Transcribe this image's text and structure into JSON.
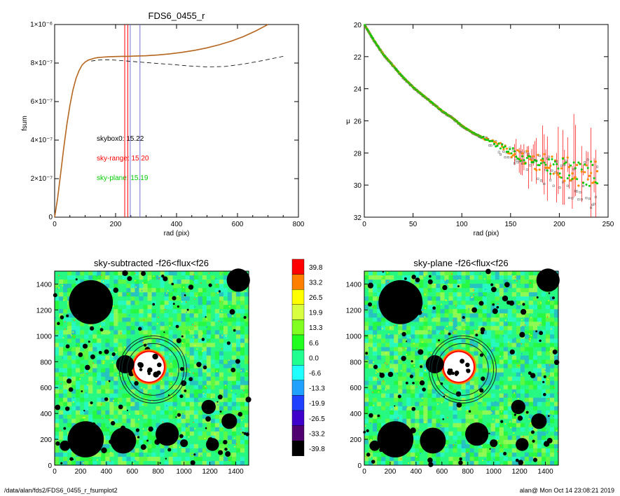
{
  "colors": {
    "sum_line": "#b5651d",
    "dashed": "#000000",
    "red": "#ff0000",
    "green": "#00cc00",
    "orange": "#ff8c00",
    "grey": "#6e6e6e",
    "blue_line": "#6f6fd8"
  },
  "footer": {
    "left": "/data/alan/fds2/FDS6_0455_r_fsumplot2",
    "right": "alan@  Mon Oct 14 23:08:21 2019"
  },
  "annotations": {
    "skybox": "skybox0: 15.22",
    "sky_range": "sky-range: 15.20",
    "sky_plane": "sky-plane: 15.19"
  },
  "chart_data": [
    {
      "type": "line",
      "title": "FDS6_0455_r",
      "xlabel": "rad (pix)",
      "ylabel": "fsum",
      "xlim": [
        0,
        800
      ],
      "ylim": [
        0,
        1e-06
      ],
      "xticks": [
        "0",
        "200",
        "400",
        "600",
        "800"
      ],
      "yticks": [
        "0",
        "2×10⁻⁷",
        "4×10⁻⁷",
        "6×10⁻⁷",
        "8×10⁻⁷",
        "1×10⁻⁶"
      ],
      "yticks_values": [
        0,
        2e-07,
        4e-07,
        6e-07,
        8e-07,
        1e-06
      ],
      "xticks_values": [
        0,
        200,
        400,
        600,
        800
      ],
      "series": [
        {
          "style": "solid",
          "x": [
            0,
            10,
            20,
            30,
            40,
            50,
            60,
            70,
            80,
            90,
            100,
            110,
            120,
            130,
            140,
            160,
            180,
            200,
            220,
            240,
            260,
            280,
            300,
            340,
            380,
            420,
            460,
            500,
            540,
            580,
            620,
            660,
            700
          ],
          "y": [
            0,
            1e-07,
            2.3e-07,
            3.6e-07,
            4.8e-07,
            5.8e-07,
            6.6e-07,
            7.2e-07,
            7.6e-07,
            7.9e-07,
            8.05e-07,
            8.15e-07,
            8.2e-07,
            8.25e-07,
            8.28e-07,
            8.31e-07,
            8.33e-07,
            8.34e-07,
            8.35e-07,
            8.35e-07,
            8.36e-07,
            8.37e-07,
            8.38e-07,
            8.42e-07,
            8.48e-07,
            8.56e-07,
            8.66e-07,
            8.79e-07,
            8.95e-07,
            9.14e-07,
            9.38e-07,
            9.67e-07,
            1e-06
          ]
        },
        {
          "style": "dashed",
          "x": [
            120,
            140,
            160,
            180,
            200,
            240,
            280,
            320,
            380,
            440,
            500,
            560,
            620,
            680,
            750
          ],
          "y": [
            8.1e-07,
            8.15e-07,
            8.17e-07,
            8.17e-07,
            8.15e-07,
            8.1e-07,
            8.05e-07,
            8e-07,
            7.93e-07,
            7.85e-07,
            7.8e-07,
            7.82e-07,
            7.95e-07,
            8.12e-07,
            8.35e-07
          ]
        }
      ],
      "vlines": [
        {
          "x": 230,
          "color": "red"
        },
        {
          "x": 240,
          "color": "red"
        },
        {
          "x": 248,
          "color": "blue"
        },
        {
          "x": 280,
          "color": "blue"
        }
      ]
    },
    {
      "type": "scatter",
      "xlabel": "rad (pix)",
      "ylabel": "μ",
      "xlim": [
        0,
        250
      ],
      "ylim": [
        32,
        20
      ],
      "xticks": [
        "0",
        "50",
        "100",
        "150",
        "200",
        "250"
      ],
      "xticks_values": [
        0,
        50,
        100,
        150,
        200,
        250
      ],
      "yticks": [
        "20",
        "22",
        "24",
        "26",
        "28",
        "30",
        "32"
      ],
      "yticks_values": [
        20,
        22,
        24,
        26,
        28,
        30,
        32
      ],
      "profile": {
        "x": [
          0,
          5,
          10,
          20,
          30,
          40,
          50,
          60,
          70,
          80,
          90,
          100,
          110,
          120,
          130,
          140,
          150,
          160,
          170,
          180,
          190,
          200,
          210,
          220,
          230,
          240
        ],
        "y": [
          20.0,
          20.5,
          21.0,
          21.9,
          22.6,
          23.3,
          23.9,
          24.4,
          24.9,
          25.4,
          25.8,
          26.3,
          26.7,
          27.0,
          27.3,
          27.6,
          27.9,
          28.2,
          28.4,
          28.6,
          28.8,
          28.9,
          29.1,
          29.2,
          29.3,
          29.4
        ]
      },
      "series_markers": [
        "green",
        "orange",
        "grey"
      ]
    },
    {
      "type": "heatmap",
      "title": "sky-subtracted -f26<flux<f26",
      "xlim": [
        0,
        1500
      ],
      "ylim": [
        0,
        1500
      ],
      "xticks": [
        "0",
        "200",
        "400",
        "600",
        "800",
        "1000",
        "1200",
        "1400"
      ],
      "yticks": [
        "0",
        "200",
        "400",
        "600",
        "800",
        "1000",
        "1200",
        "1400"
      ]
    },
    {
      "type": "heatmap",
      "title": "sky-plane -f26<flux<f26",
      "xlim": [
        0,
        1500
      ],
      "ylim": [
        0,
        1500
      ],
      "xticks": [
        "0",
        "200",
        "400",
        "600",
        "800",
        "1000",
        "1200",
        "1400"
      ],
      "yticks": [
        "0",
        "200",
        "400",
        "600",
        "800",
        "1000",
        "1200",
        "1400"
      ]
    }
  ],
  "colorbar": {
    "labels": [
      "39.8",
      "33.2",
      "26.5",
      "19.9",
      "13.3",
      "6.6",
      "0.0",
      "-6.6",
      "-13.3",
      "-19.9",
      "-26.5",
      "-33.2",
      "-39.8"
    ],
    "colors": [
      "#ff0000",
      "#ff8000",
      "#ffff00",
      "#d8ff40",
      "#80ff20",
      "#20ff20",
      "#20ff90",
      "#20ffff",
      "#20a0ff",
      "#2040ff",
      "#4000cc",
      "#500070",
      "#000000"
    ]
  },
  "masks": [
    {
      "x": 280,
      "y": 1260,
      "r": 170
    },
    {
      "x": 1420,
      "y": 1430,
      "r": 90
    },
    {
      "x": 240,
      "y": 200,
      "r": 140
    },
    {
      "x": 530,
      "y": 190,
      "r": 100
    },
    {
      "x": 870,
      "y": 240,
      "r": 90
    },
    {
      "x": 545,
      "y": 780,
      "r": 70
    },
    {
      "x": 1350,
      "y": 340,
      "r": 60
    },
    {
      "x": 1000,
      "y": 170,
      "r": 30
    },
    {
      "x": 1220,
      "y": 160,
      "r": 50
    },
    {
      "x": 1190,
      "y": 450,
      "r": 55
    },
    {
      "x": 80,
      "y": 150,
      "r": 40
    }
  ],
  "rings": {
    "cx": 760,
    "cy": 740,
    "r": [
      200,
      240,
      260
    ]
  },
  "galaxy": {
    "cx": 730,
    "cy": 760,
    "r": 120
  }
}
